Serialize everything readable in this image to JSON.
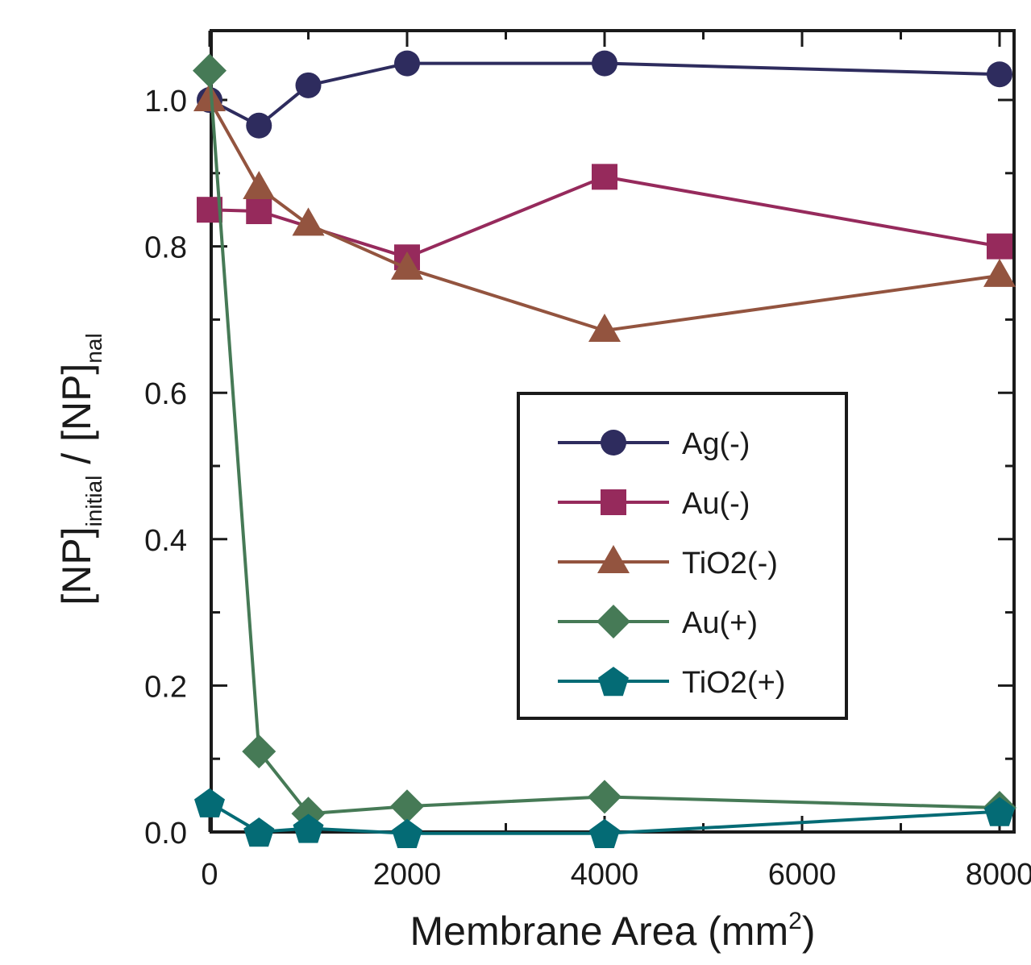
{
  "chart_data": {
    "type": "line",
    "xlabel": "Membrane Area (mm²)",
    "xlabel_parts": {
      "main": "Membrane Area (mm",
      "sup": "2",
      "end": ")"
    },
    "ylabel_parts": {
      "a": "[NP]",
      "a_sub": "initial",
      "sep": " / [NP]",
      "b_sub": "nal"
    },
    "xlim": [
      0,
      8000
    ],
    "ylim": [
      0,
      1.0
    ],
    "xticks": [
      0,
      2000,
      4000,
      6000,
      8000
    ],
    "xtick_labels": [
      "0",
      "2000",
      "4000",
      "6000",
      "8000"
    ],
    "yticks": [
      0.0,
      0.2,
      0.4,
      0.6,
      0.8,
      1.0
    ],
    "ytick_labels": [
      "0.0",
      "0.2",
      "0.4",
      "0.6",
      "0.8",
      "1.0"
    ],
    "legend_position": "center-right",
    "grid": false,
    "series": [
      {
        "name": "Ag(-)",
        "color": "#2e2c5e",
        "marker": "circle",
        "x": [
          0,
          500,
          1000,
          2000,
          4000,
          8000
        ],
        "y": [
          1.0,
          0.965,
          1.02,
          1.05,
          1.05,
          1.035
        ]
      },
      {
        "name": "Au(-)",
        "color": "#962a5c",
        "marker": "square",
        "x": [
          0,
          500,
          2000,
          4000,
          8000
        ],
        "y": [
          0.85,
          0.848,
          0.785,
          0.895,
          0.8
        ]
      },
      {
        "name": "TiO2(-)",
        "color": "#93543f",
        "marker": "triangle",
        "x": [
          0,
          500,
          1000,
          2000,
          4000,
          8000
        ],
        "y": [
          1.0,
          0.88,
          0.83,
          0.77,
          0.685,
          0.76
        ]
      },
      {
        "name": "Au(+)",
        "color": "#467a56",
        "marker": "diamond",
        "x": [
          0,
          500,
          1000,
          2000,
          4000,
          8000
        ],
        "y": [
          1.04,
          0.11,
          0.025,
          0.035,
          0.048,
          0.033
        ]
      },
      {
        "name": "TiO2(+)",
        "color": "#046b75",
        "marker": "pentagon",
        "x": [
          0,
          500,
          1000,
          2000,
          4000,
          8000
        ],
        "y": [
          0.04,
          0.0,
          0.005,
          -0.002,
          -0.002,
          0.028
        ]
      }
    ]
  }
}
